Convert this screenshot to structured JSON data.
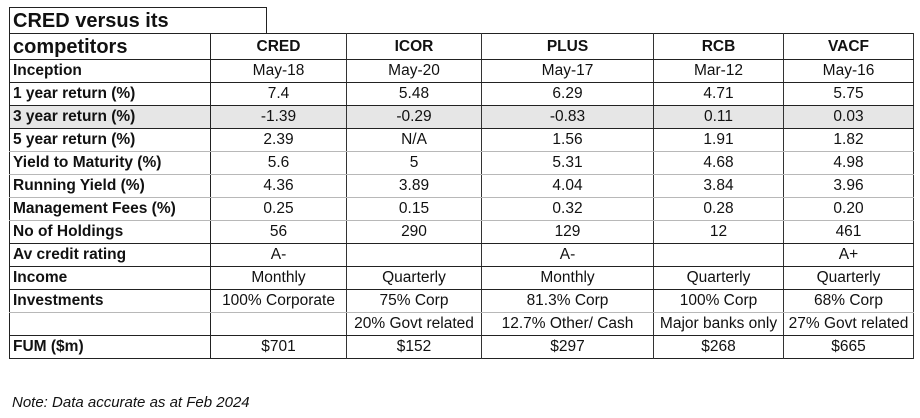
{
  "title": "CRED versus its competitors",
  "columns": [
    "CRED",
    "ICOR",
    "PLUS",
    "RCB",
    "VACF"
  ],
  "rows": [
    {
      "label": "Inception",
      "values": [
        "May-18",
        "May-20",
        "May-17",
        "Mar-12",
        "May-16"
      ],
      "shaded": false
    },
    {
      "label": "1 year return (%)",
      "values": [
        "7.4",
        "5.48",
        "6.29",
        "4.71",
        "5.75"
      ],
      "shaded": false
    },
    {
      "label": "3 year return (%)",
      "values": [
        "-1.39",
        "-0.29",
        "-0.83",
        "0.11",
        "0.03"
      ],
      "shaded": true
    },
    {
      "label": "5 year return (%)",
      "values": [
        "2.39",
        "N/A",
        "1.56",
        "1.91",
        "1.82"
      ],
      "shaded": false
    },
    {
      "label": "Yield to Maturity (%)",
      "values": [
        "5.6",
        "5",
        "5.31",
        "4.68",
        "4.98"
      ],
      "shaded": false
    },
    {
      "label": "Running Yield (%)",
      "values": [
        "4.36",
        "3.89",
        "4.04",
        "3.84",
        "3.96"
      ],
      "shaded": false
    },
    {
      "label": "Management Fees (%)",
      "values": [
        "0.25",
        "0.15",
        "0.32",
        "0.28",
        "0.20"
      ],
      "shaded": false
    },
    {
      "label": "No of Holdings",
      "values": [
        "56",
        "290",
        "129",
        "12",
        "461"
      ],
      "shaded": false
    },
    {
      "label": "Av credit rating",
      "values": [
        "A-",
        "",
        "A-",
        "",
        "A+"
      ],
      "shaded": false
    },
    {
      "label": "Income",
      "values": [
        "Monthly",
        "Quarterly",
        "Monthly",
        "Quarterly",
        "Quarterly"
      ],
      "shaded": false
    },
    {
      "label": "Investments",
      "values": [
        "100% Corporate",
        "75% Corp",
        "81.3% Corp",
        "100% Corp",
        "68% Corp"
      ],
      "shaded": false
    },
    {
      "label": "",
      "values": [
        "",
        "20% Govt related",
        "12.7% Other/ Cash",
        "Major banks only",
        "27% Govt related"
      ],
      "shaded": false
    },
    {
      "label": "FUM ($m)",
      "values": [
        "$701",
        "$152",
        "$297",
        "$268",
        "$665"
      ],
      "shaded": false
    }
  ],
  "note": "Note: Data accurate as at  Feb 2024"
}
